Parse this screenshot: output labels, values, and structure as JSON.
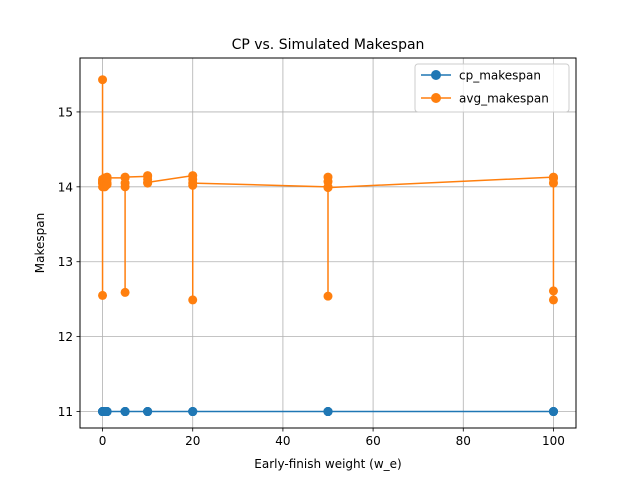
{
  "chart_data": {
    "type": "line",
    "title": "CP vs. Simulated Makespan",
    "xlabel": "Early-finish weight (w_e)",
    "ylabel": "Makespan",
    "xlim": [
      -5,
      105
    ],
    "ylim": [
      10.78,
      15.72
    ],
    "xticks": [
      0,
      20,
      40,
      60,
      80,
      100
    ],
    "yticks": [
      11,
      12,
      13,
      14,
      15
    ],
    "grid": true,
    "legend_position": "top-right",
    "series": [
      {
        "name": "cp_makespan",
        "color": "#1f77b4",
        "x": [
          0,
          0,
          0,
          0,
          0,
          0,
          0,
          0.1,
          0.1,
          0.1,
          0.1,
          0.1,
          0.5,
          0.5,
          0.5,
          0.5,
          0.5,
          1,
          1,
          1,
          1,
          1,
          5,
          5,
          5,
          5,
          5,
          10,
          10,
          10,
          10,
          10,
          20,
          20,
          20,
          20,
          20,
          50,
          50,
          50,
          50,
          50,
          100,
          100,
          100,
          100,
          100
        ],
        "y": [
          11,
          11,
          11,
          11,
          11,
          11,
          11,
          11,
          11,
          11,
          11,
          11,
          11,
          11,
          11,
          11,
          11,
          11,
          11,
          11,
          11,
          11,
          11,
          11,
          11,
          11,
          11,
          11,
          11,
          11,
          11,
          11,
          11,
          11,
          11,
          11,
          11,
          11,
          11,
          11,
          11,
          11,
          11,
          11,
          11,
          11,
          11
        ]
      },
      {
        "name": "avg_makespan",
        "color": "#ff7f0e",
        "x": [
          0,
          0,
          0,
          0,
          0,
          0,
          0,
          0.1,
          0.1,
          0.1,
          0.1,
          0.1,
          0.5,
          0.5,
          0.5,
          0.5,
          0.5,
          1,
          1,
          1,
          1,
          1,
          5,
          5,
          5,
          5,
          5,
          10,
          10,
          10,
          10,
          10,
          20,
          20,
          20,
          20,
          20,
          50,
          50,
          50,
          50,
          50,
          100,
          100,
          100,
          100,
          100
        ],
        "y": [
          14.05,
          15.43,
          12.55,
          14.0,
          14.08,
          14.05,
          14.1,
          14.02,
          14.08,
          14.03,
          14.1,
          14.05,
          14.1,
          14.05,
          14.0,
          14.12,
          14.06,
          14.13,
          14.05,
          14.1,
          14.03,
          14.12,
          14.12,
          12.59,
          14.0,
          14.05,
          14.13,
          14.14,
          14.05,
          14.1,
          14.15,
          14.06,
          14.15,
          12.49,
          14.02,
          14.1,
          14.05,
          14.0,
          12.54,
          14.13,
          14.07,
          13.99,
          14.13,
          12.49,
          12.61,
          14.05,
          14.11
        ]
      }
    ]
  }
}
